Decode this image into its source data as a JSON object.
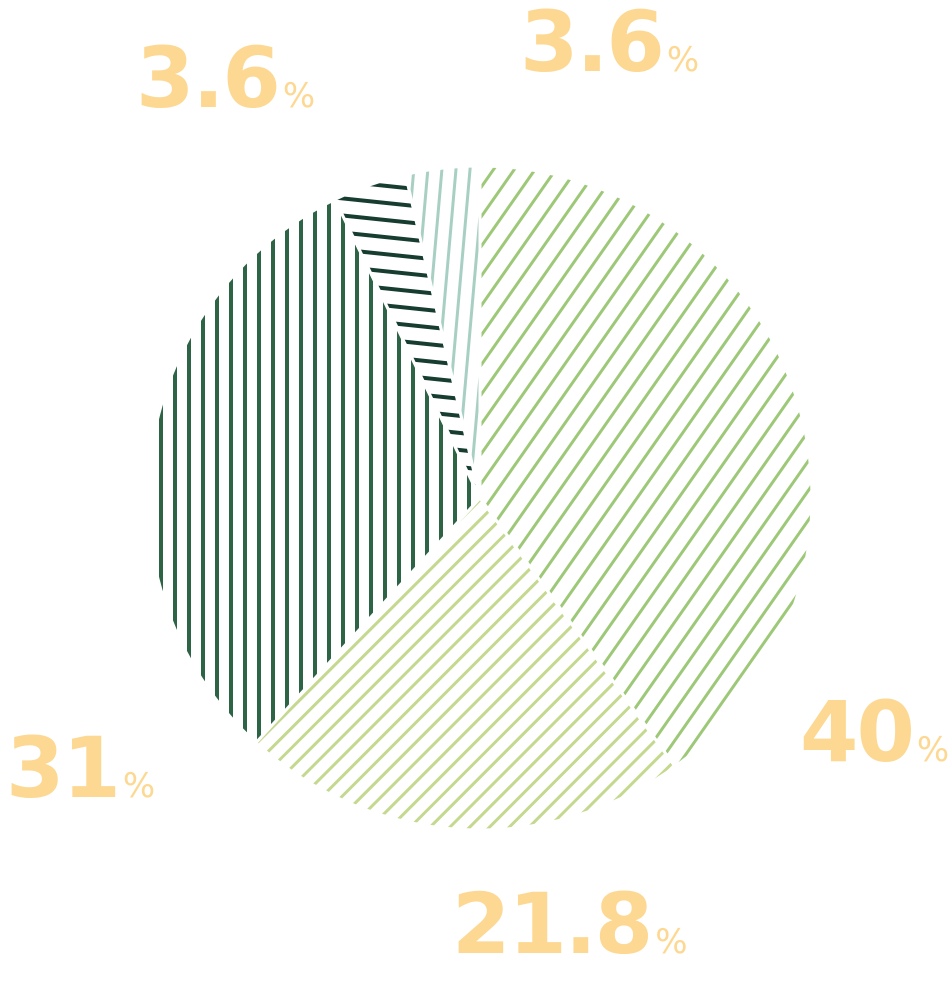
{
  "chart_data": {
    "type": "pie",
    "slices": [
      {
        "value": 40,
        "label_value": "40",
        "unit": "%",
        "color": "#9dc878"
      },
      {
        "value": 21.8,
        "label_value": "21.8",
        "unit": "%",
        "color": "#c4d98f"
      },
      {
        "value": 31,
        "label_value": "31",
        "unit": "%",
        "color": "#2e6446"
      },
      {
        "value": 3.6,
        "label_value": "3.6",
        "unit": "%",
        "color": "#173d31"
      },
      {
        "value": 3.6,
        "label_value": "3.6",
        "unit": "%",
        "color": "#a8cfc3"
      }
    ],
    "label_color": "#fdd893"
  }
}
